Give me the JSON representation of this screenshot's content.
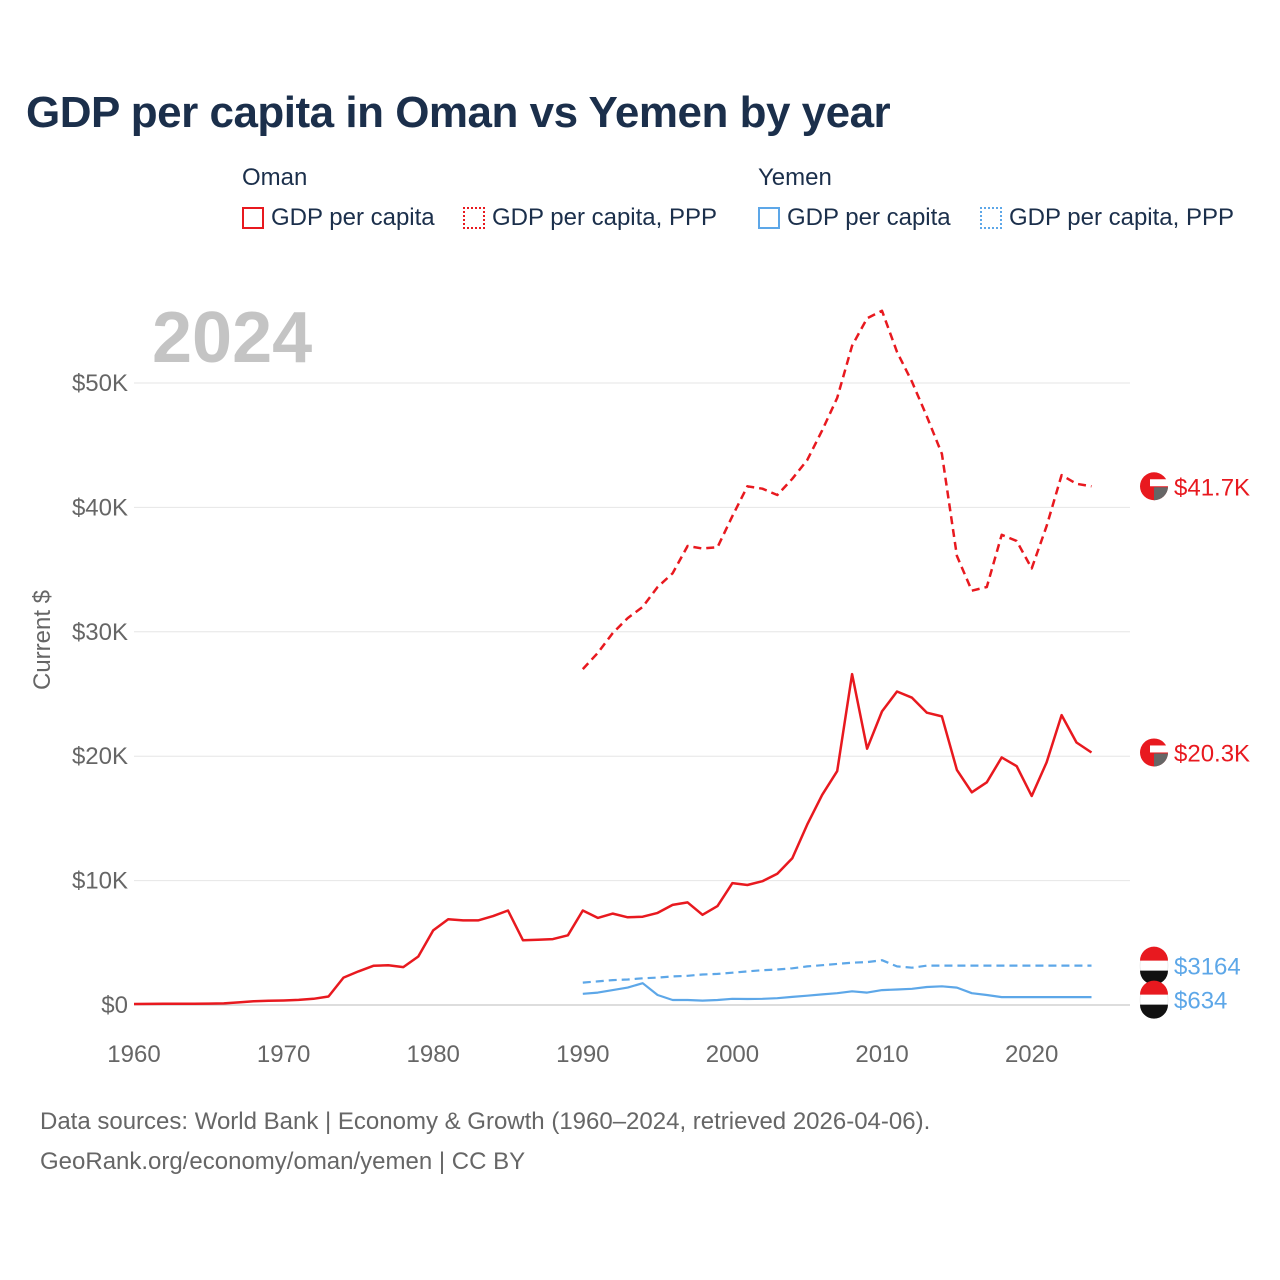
{
  "title": "GDP per capita in Oman vs Yemen by year",
  "year_watermark": "2024",
  "legend": {
    "groups": [
      {
        "country": "Oman",
        "items": [
          {
            "label": "GDP per capita",
            "style": "solid"
          },
          {
            "label": "GDP per capita, PPP",
            "style": "dotted"
          }
        ],
        "color": "#e8191f"
      },
      {
        "country": "Yemen",
        "items": [
          {
            "label": "GDP per capita",
            "style": "solid"
          },
          {
            "label": "GDP per capita, PPP",
            "style": "dotted"
          }
        ],
        "color": "#5da7e8"
      }
    ]
  },
  "source_line1": "Data sources: World Bank | Economy & Growth (1960–2024, retrieved 2026-04-06).",
  "source_line2": "GeoRank.org/economy/oman/yemen | CC BY",
  "chart_data": {
    "type": "line",
    "title": "GDP per capita in Oman vs Yemen by year",
    "ylabel": "Current $",
    "xlabel": "",
    "xlim": [
      1960,
      2024
    ],
    "ylim": [
      0,
      55000
    ],
    "x_ticks": [
      1960,
      1970,
      1980,
      1990,
      2000,
      2010,
      2020
    ],
    "x_tick_labels": [
      "1960",
      "1970",
      "1980",
      "1990",
      "2000",
      "2010",
      "2020"
    ],
    "y_ticks": [
      0,
      10000,
      20000,
      30000,
      40000,
      50000
    ],
    "y_tick_labels": [
      "$0",
      "$10K",
      "$20K",
      "$30K",
      "$40K",
      "$50K"
    ],
    "series": [
      {
        "name": "Oman GDP per capita",
        "country": "Oman",
        "color": "#e8191f",
        "dash": "solid",
        "end_label": "$20.3K",
        "points": [
          [
            1960,
            80
          ],
          [
            1961,
            85
          ],
          [
            1962,
            95
          ],
          [
            1963,
            100
          ],
          [
            1964,
            105
          ],
          [
            1965,
            110
          ],
          [
            1966,
            130
          ],
          [
            1967,
            210
          ],
          [
            1968,
            300
          ],
          [
            1969,
            340
          ],
          [
            1970,
            360
          ],
          [
            1971,
            410
          ],
          [
            1972,
            500
          ],
          [
            1973,
            680
          ],
          [
            1974,
            2200
          ],
          [
            1975,
            2700
          ],
          [
            1976,
            3150
          ],
          [
            1977,
            3200
          ],
          [
            1978,
            3050
          ],
          [
            1979,
            3900
          ],
          [
            1980,
            6000
          ],
          [
            1981,
            6900
          ],
          [
            1982,
            6800
          ],
          [
            1983,
            6800
          ],
          [
            1984,
            7150
          ],
          [
            1985,
            7600
          ],
          [
            1986,
            5200
          ],
          [
            1987,
            5250
          ],
          [
            1988,
            5300
          ],
          [
            1989,
            5600
          ],
          [
            1990,
            7600
          ],
          [
            1991,
            7000
          ],
          [
            1992,
            7350
          ],
          [
            1993,
            7050
          ],
          [
            1994,
            7100
          ],
          [
            1995,
            7400
          ],
          [
            1996,
            8050
          ],
          [
            1997,
            8250
          ],
          [
            1998,
            7250
          ],
          [
            1999,
            7950
          ],
          [
            2000,
            9800
          ],
          [
            2001,
            9650
          ],
          [
            2002,
            9950
          ],
          [
            2003,
            10550
          ],
          [
            2004,
            11800
          ],
          [
            2005,
            14500
          ],
          [
            2006,
            16900
          ],
          [
            2007,
            18800
          ],
          [
            2008,
            26600
          ],
          [
            2009,
            20600
          ],
          [
            2010,
            23600
          ],
          [
            2011,
            25200
          ],
          [
            2012,
            24700
          ],
          [
            2013,
            23500
          ],
          [
            2014,
            23200
          ],
          [
            2015,
            18900
          ],
          [
            2016,
            17100
          ],
          [
            2017,
            17900
          ],
          [
            2018,
            19900
          ],
          [
            2019,
            19200
          ],
          [
            2020,
            16800
          ],
          [
            2021,
            19500
          ],
          [
            2022,
            23300
          ],
          [
            2023,
            21100
          ],
          [
            2024,
            20300
          ]
        ]
      },
      {
        "name": "Oman GDP per capita, PPP",
        "country": "Oman",
        "color": "#e8191f",
        "dash": "dashed",
        "end_label": "$41.7K",
        "points": [
          [
            1990,
            27000
          ],
          [
            1991,
            28300
          ],
          [
            1992,
            29900
          ],
          [
            1993,
            31100
          ],
          [
            1994,
            32000
          ],
          [
            1995,
            33600
          ],
          [
            1996,
            34700
          ],
          [
            1997,
            36900
          ],
          [
            1998,
            36700
          ],
          [
            1999,
            36800
          ],
          [
            2000,
            39300
          ],
          [
            2001,
            41700
          ],
          [
            2002,
            41500
          ],
          [
            2003,
            41000
          ],
          [
            2004,
            42300
          ],
          [
            2005,
            43800
          ],
          [
            2006,
            46200
          ],
          [
            2007,
            48800
          ],
          [
            2008,
            53000
          ],
          [
            2009,
            55200
          ],
          [
            2010,
            55800
          ],
          [
            2011,
            52500
          ],
          [
            2012,
            50100
          ],
          [
            2013,
            47300
          ],
          [
            2014,
            44300
          ],
          [
            2015,
            36100
          ],
          [
            2016,
            33300
          ],
          [
            2017,
            33600
          ],
          [
            2018,
            37800
          ],
          [
            2019,
            37300
          ],
          [
            2020,
            35100
          ],
          [
            2021,
            38500
          ],
          [
            2022,
            42600
          ],
          [
            2023,
            41900
          ],
          [
            2024,
            41700
          ]
        ]
      },
      {
        "name": "Yemen GDP per capita",
        "country": "Yemen",
        "color": "#5da7e8",
        "dash": "solid",
        "end_label": "$634",
        "points": [
          [
            1990,
            900
          ],
          [
            1991,
            1000
          ],
          [
            1992,
            1200
          ],
          [
            1993,
            1400
          ],
          [
            1994,
            1750
          ],
          [
            1995,
            800
          ],
          [
            1996,
            400
          ],
          [
            1997,
            400
          ],
          [
            1998,
            350
          ],
          [
            1999,
            400
          ],
          [
            2000,
            500
          ],
          [
            2001,
            480
          ],
          [
            2002,
            500
          ],
          [
            2003,
            550
          ],
          [
            2004,
            650
          ],
          [
            2005,
            750
          ],
          [
            2006,
            850
          ],
          [
            2007,
            950
          ],
          [
            2008,
            1100
          ],
          [
            2009,
            1000
          ],
          [
            2010,
            1200
          ],
          [
            2011,
            1250
          ],
          [
            2012,
            1300
          ],
          [
            2013,
            1450
          ],
          [
            2014,
            1500
          ],
          [
            2015,
            1400
          ],
          [
            2016,
            950
          ],
          [
            2017,
            800
          ],
          [
            2018,
            634
          ],
          [
            2024,
            634
          ]
        ]
      },
      {
        "name": "Yemen GDP per capita, PPP",
        "country": "Yemen",
        "color": "#5da7e8",
        "dash": "dashed",
        "end_label": "$3164",
        "points": [
          [
            1990,
            1800
          ],
          [
            1991,
            1900
          ],
          [
            1992,
            2000
          ],
          [
            1993,
            2050
          ],
          [
            1994,
            2150
          ],
          [
            1995,
            2200
          ],
          [
            1996,
            2300
          ],
          [
            1997,
            2350
          ],
          [
            1998,
            2450
          ],
          [
            1999,
            2500
          ],
          [
            2000,
            2600
          ],
          [
            2001,
            2700
          ],
          [
            2002,
            2800
          ],
          [
            2003,
            2850
          ],
          [
            2004,
            2950
          ],
          [
            2005,
            3100
          ],
          [
            2006,
            3200
          ],
          [
            2007,
            3300
          ],
          [
            2008,
            3400
          ],
          [
            2009,
            3450
          ],
          [
            2010,
            3600
          ],
          [
            2011,
            3100
          ],
          [
            2012,
            3000
          ],
          [
            2013,
            3164
          ],
          [
            2024,
            3164
          ]
        ]
      }
    ]
  }
}
